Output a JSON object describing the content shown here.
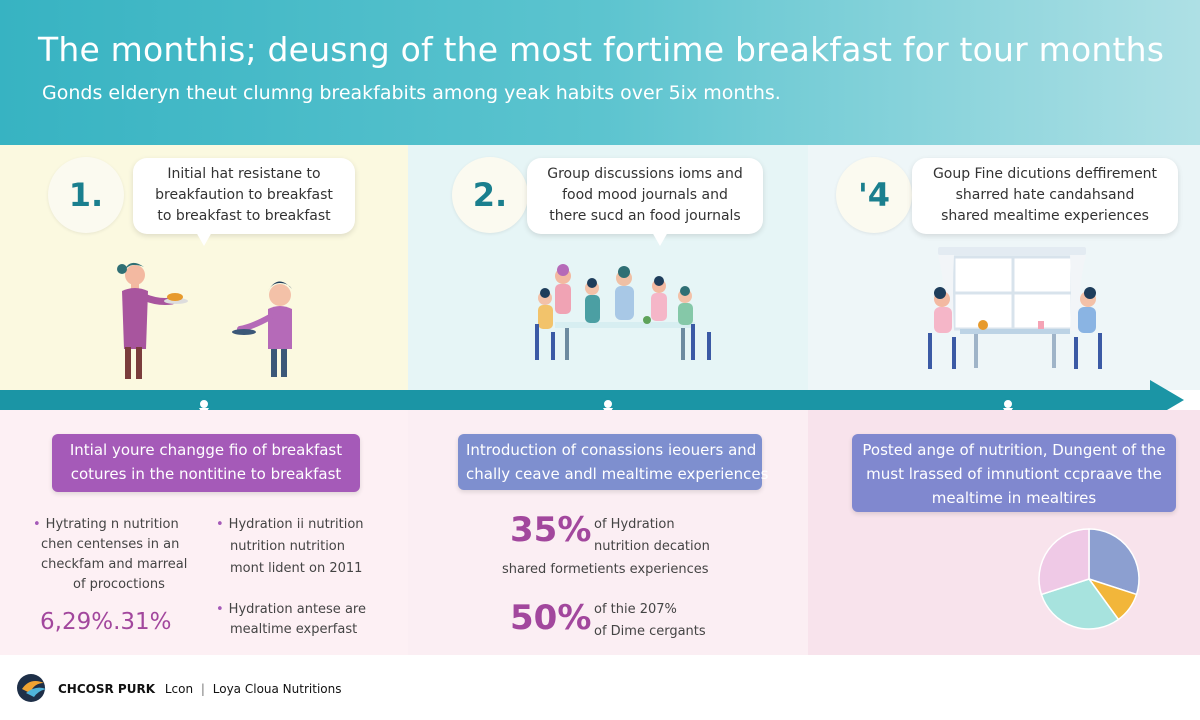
{
  "header": {
    "title": "The monthis; deusng of the most fortime breakfast for tour months",
    "subtitle": "Gonds elderyn theut clumng breakfabits among yeak habits over 5ix months."
  },
  "steps": [
    {
      "number": "1.",
      "bubble_lines": [
        "Initial hat resistane to",
        "breakfaution to breakfast",
        "to breakfast to breakfast"
      ]
    },
    {
      "number": "2.",
      "bubble_lines": [
        "Group discussions ioms and",
        "food mood journals and",
        "there sucd an food journals"
      ]
    },
    {
      "number": "'4",
      "bubble_lines": [
        "Goup Fine dicutions deffirement",
        "sharred hate candahsand",
        "shared mealtime experiences"
      ]
    }
  ],
  "phases": [
    {
      "banner_lines": [
        "Intial youre changge fio of breakfast",
        "cotures in the nontitine to breakfast"
      ],
      "bullets_left": [
        "Hytrating n nutrition",
        "chen centenses in an",
        "checkfam and marreal",
        "of prococtions"
      ],
      "bullets_right_a": [
        "Hydration ii nutrition",
        "nutrition nutrition",
        "mont lident on 2011"
      ],
      "bullets_right_b": [
        "Hydration antese are",
        "mealtime experfast"
      ],
      "stat": "6,29%.31%"
    },
    {
      "banner_lines": [
        "Introduction of conassions ieouers and",
        "chally ceave andl mealtime experiences"
      ],
      "stat1": {
        "value": "35%",
        "lines": [
          "of Hydration",
          "nutrition decation",
          "shared formetients experiences"
        ]
      },
      "stat2": {
        "value": "50%",
        "lines": [
          "of thie 207%",
          "of Dime cergants"
        ]
      }
    },
    {
      "banner_lines": [
        "Posted ange of nutrition, Dungent of the",
        "must lrassed of imnutiont ccpraave the",
        "mealtime in mealtires"
      ],
      "pie": {
        "slices": [
          {
            "value": 30,
            "color": "#8c9fd0"
          },
          {
            "value": 10,
            "color": "#f2b63a"
          },
          {
            "value": 30,
            "color": "#a7e3de"
          },
          {
            "value": 30,
            "color": "#efc9e6"
          }
        ]
      }
    }
  ],
  "footer": {
    "brand": "CHCOSR PURK",
    "brand_light": "Lcon",
    "tagline": "Loya Cloua Nutritions"
  },
  "colors": {
    "header": "#37b3c2",
    "timeline": "#1b95a5",
    "banner_purple": "#a55ab8",
    "banner_blue": "#7e8fcf",
    "banner_indigo": "#8088cf",
    "accent_pct": "#a2479d",
    "panel1": "#fbf9e0",
    "panel2": "#e6f5f6",
    "panel3": "#eef6f8",
    "panel_pink": "#fbe6ee"
  }
}
